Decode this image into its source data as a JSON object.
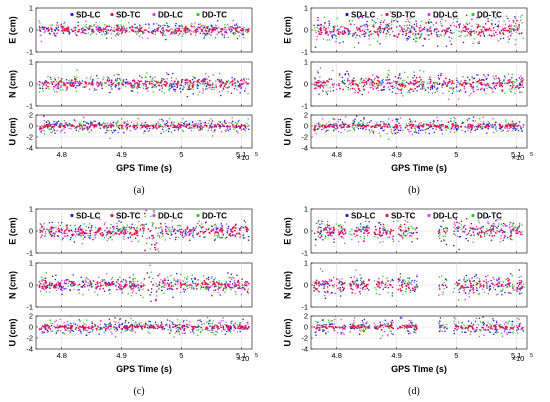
{
  "figure": {
    "panels": [
      {
        "caption": "(a)",
        "variant": "clean"
      },
      {
        "caption": "(b)",
        "variant": "noisy"
      },
      {
        "caption": "(c)",
        "variant": "spike"
      },
      {
        "caption": "(d)",
        "variant": "gaps"
      }
    ],
    "xlabel": "GPS Time (s)",
    "x_exponent_label": "×10",
    "x_exponent_power": "5",
    "x_ticks": [
      4.8,
      4.9,
      5.0,
      5.1
    ],
    "x_tick_labels": [
      "4.8",
      "4.9",
      "5",
      "5.1"
    ],
    "xlim": [
      4.757,
      5.118
    ],
    "legend": [
      "SD-LC",
      "SD-TC",
      "DD-LC",
      "DD-TC"
    ],
    "series_colors": {
      "SD-LC": "#1f1fd8",
      "SD-TC": "#e8104a",
      "DD-LC": "#e040e0",
      "DD-TC": "#2ec82e"
    },
    "subplots": [
      {
        "ylabel": "E (cm)",
        "ylim": [
          -1,
          1
        ],
        "yticks": [
          -1,
          0,
          1
        ]
      },
      {
        "ylabel": "N (cm)",
        "ylim": [
          -1,
          1
        ],
        "yticks": [
          -1,
          0,
          1
        ]
      },
      {
        "ylabel": "U (cm)",
        "ylim": [
          -4,
          2
        ],
        "yticks": [
          -4,
          -2,
          0,
          2
        ]
      }
    ]
  },
  "chart_data": [
    {
      "type": "scatter",
      "caption": "(a)",
      "xlabel": "GPS Time (s)",
      "x_scale": "×10^5",
      "series": [
        {
          "name": "SD-LC"
        },
        {
          "name": "SD-TC"
        },
        {
          "name": "DD-LC"
        },
        {
          "name": "DD-TC"
        }
      ],
      "subplots": [
        {
          "ylabel": "E (cm)",
          "ylim": [
            -1,
            1
          ],
          "center": 0,
          "spread": 0.15
        },
        {
          "ylabel": "N (cm)",
          "ylim": [
            -1,
            1
          ],
          "center": 0,
          "spread": 0.2
        },
        {
          "ylabel": "U (cm)",
          "ylim": [
            -4,
            2
          ],
          "center": 0,
          "spread": 0.6
        }
      ]
    },
    {
      "type": "scatter",
      "caption": "(b)",
      "xlabel": "GPS Time (s)",
      "x_scale": "×10^5",
      "series": [
        {
          "name": "SD-LC"
        },
        {
          "name": "SD-TC"
        },
        {
          "name": "DD-LC"
        },
        {
          "name": "DD-TC"
        }
      ],
      "subplots": [
        {
          "ylabel": "E (cm)",
          "ylim": [
            -1,
            1
          ],
          "center": 0,
          "spread": 0.3
        },
        {
          "ylabel": "N (cm)",
          "ylim": [
            -1,
            1
          ],
          "center": 0,
          "spread": 0.25
        },
        {
          "ylabel": "U (cm)",
          "ylim": [
            -4,
            2
          ],
          "center": 0,
          "spread": 0.7
        }
      ]
    },
    {
      "type": "scatter",
      "caption": "(c)",
      "xlabel": "GPS Time (s)",
      "x_scale": "×10^5",
      "series": [
        {
          "name": "SD-LC"
        },
        {
          "name": "SD-TC"
        },
        {
          "name": "DD-LC"
        },
        {
          "name": "DD-TC"
        }
      ],
      "subplots": [
        {
          "ylabel": "E (cm)",
          "ylim": [
            -1,
            1
          ],
          "center": 0,
          "spread": 0.2,
          "spike_at": 4.95
        },
        {
          "ylabel": "N (cm)",
          "ylim": [
            -1,
            1
          ],
          "center": 0,
          "spread": 0.2,
          "spike_at": 4.95
        },
        {
          "ylabel": "U (cm)",
          "ylim": [
            -4,
            2
          ],
          "center": 0,
          "spread": 0.7
        }
      ]
    },
    {
      "type": "scatter",
      "caption": "(d)",
      "xlabel": "GPS Time (s)",
      "x_scale": "×10^5",
      "series": [
        {
          "name": "SD-LC"
        },
        {
          "name": "SD-TC"
        },
        {
          "name": "DD-LC"
        },
        {
          "name": "DD-TC"
        }
      ],
      "gaps": [
        [
          4.815,
          4.822
        ],
        [
          4.855,
          4.862
        ],
        [
          4.895,
          4.902
        ],
        [
          4.935,
          4.97
        ],
        [
          4.985,
          4.995
        ]
      ],
      "subplots": [
        {
          "ylabel": "E (cm)",
          "ylim": [
            -1,
            1
          ],
          "center": 0,
          "spread": 0.25
        },
        {
          "ylabel": "N (cm)",
          "ylim": [
            -1,
            1
          ],
          "center": 0,
          "spread": 0.25
        },
        {
          "ylabel": "U (cm)",
          "ylim": [
            -4,
            2
          ],
          "center": 0,
          "spread": 0.8
        }
      ]
    }
  ]
}
